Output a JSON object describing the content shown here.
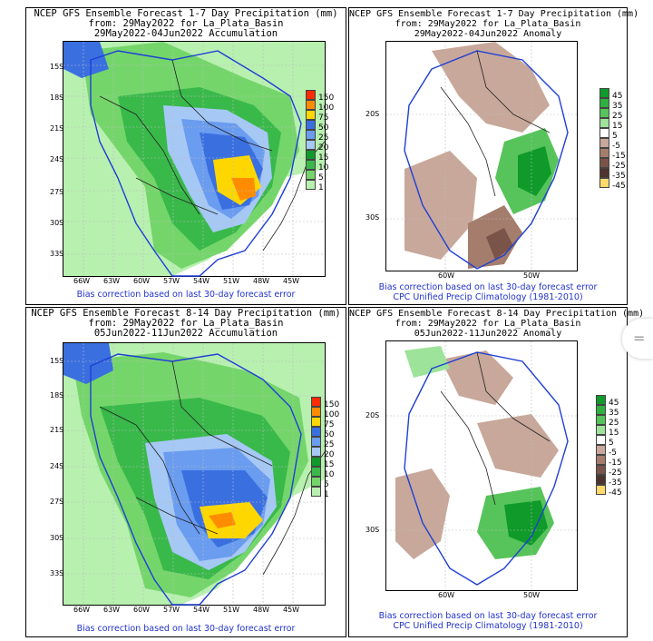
{
  "panels": [
    {
      "title_lines": [
        "NCEP GFS Ensemble Forecast 1-7 Day Precipitation (mm)",
        "from: 29May2022   for La_Plata_Basin",
        "29May2022-04Jun2022 Accumulation"
      ],
      "kind": "accum",
      "lat_labels": [
        "15S",
        "18S",
        "21S",
        "24S",
        "27S",
        "30S",
        "33S"
      ],
      "lon_labels": [
        "66W",
        "63W",
        "60W",
        "57W",
        "54W",
        "51W",
        "48W",
        "45W"
      ],
      "legend_labels": [
        "150",
        "100",
        "75",
        "50",
        "25",
        "20",
        "15",
        "10",
        "5",
        "1"
      ],
      "footer_lines": [
        "Bias correction based on last 30-day forecast error"
      ]
    },
    {
      "title_lines": [
        "NCEP GFS Ensemble Forecast 1-7 Day Precipitation (mm)",
        "from: 29May2022   for La_Plata_Basin",
        "29May2022-04Jun2022 Anomaly"
      ],
      "kind": "anom",
      "lat_labels": [
        "20S",
        "30S"
      ],
      "lon_labels": [
        "60W",
        "50W"
      ],
      "legend_labels": [
        "45",
        "35",
        "25",
        "15",
        "5",
        "-5",
        "-15",
        "-25",
        "-35",
        "-45"
      ],
      "footer_lines": [
        "Bias correction based on last 30-day forecast error",
        "CPC Unified Precip Climatology (1981-2010)"
      ]
    },
    {
      "title_lines": [
        "NCEP GFS Ensemble Forecast 8-14 Day Precipitation (mm)",
        "from: 29May2022   for La_Plata_Basin",
        "05Jun2022-11Jun2022 Accumulation"
      ],
      "kind": "accum",
      "lat_labels": [
        "15S",
        "18S",
        "21S",
        "24S",
        "27S",
        "30S",
        "33S"
      ],
      "lon_labels": [
        "66W",
        "63W",
        "60W",
        "57W",
        "54W",
        "51W",
        "48W",
        "45W"
      ],
      "legend_labels": [
        "150",
        "100",
        "75",
        "50",
        "25",
        "20",
        "15",
        "10",
        "5",
        "1"
      ],
      "footer_lines": [
        "Bias correction based on last 30-day forecast error"
      ]
    },
    {
      "title_lines": [
        "NCEP GFS Ensemble Forecast 8-14 Day Precipitation (mm)",
        "from: 29May2022   for La_Plata_Basin",
        "05Jun2022-11Jun2022 Anomaly"
      ],
      "kind": "anom",
      "lat_labels": [
        "20S",
        "30S"
      ],
      "lon_labels": [
        "60W",
        "50W"
      ],
      "legend_labels": [
        "45",
        "35",
        "25",
        "15",
        "5",
        "-5",
        "-15",
        "-25",
        "-35",
        "-45"
      ],
      "footer_lines": [
        "Bias correction based on last 30-day forecast error",
        "CPC Unified Precip Climatology (1981-2010)"
      ]
    }
  ],
  "colors": {
    "accum_scale": [
      "#ff2a00",
      "#ff8c00",
      "#ffd700",
      "#3a6fe0",
      "#6a9cf0",
      "#a6c8f5",
      "#0f9a2a",
      "#39b94a",
      "#74d66a",
      "#b8f0b0"
    ],
    "anom_scale": [
      "#0f9a2a",
      "#2fb03f",
      "#56c45a",
      "#9de39a",
      "#ffffff",
      "#c8a89a",
      "#a57d6c",
      "#7a5448",
      "#4e342e",
      "#ffd96a"
    ],
    "boundary_blue": "#1f3fd6"
  },
  "side_button_glyph": "="
}
